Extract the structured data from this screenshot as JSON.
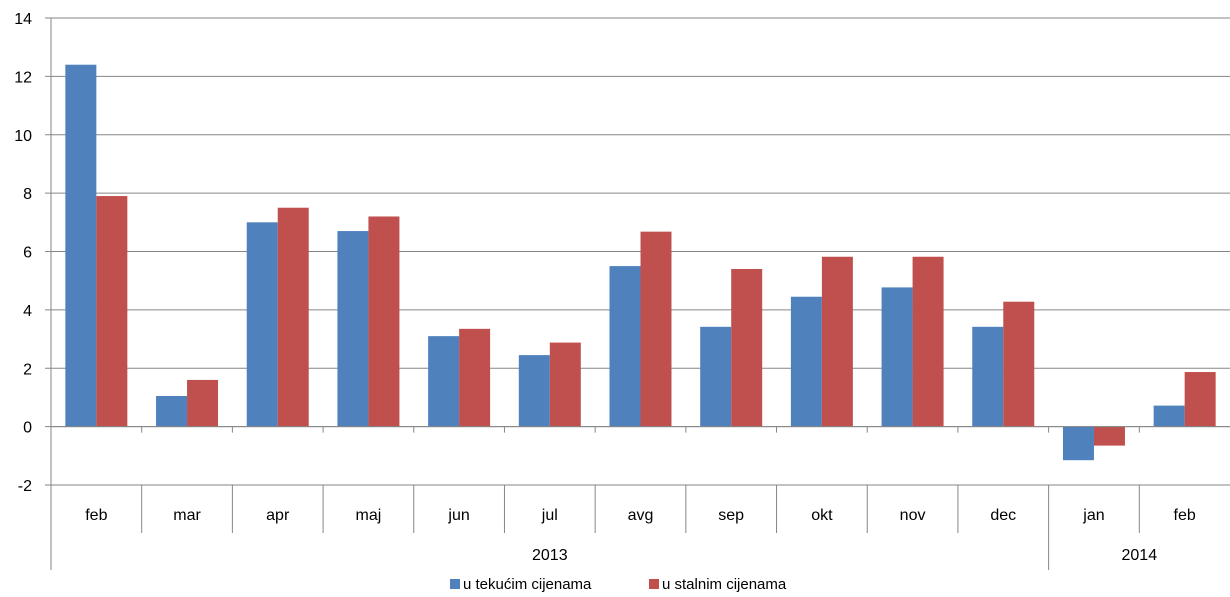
{
  "chart_data": {
    "type": "bar",
    "categories": [
      "feb",
      "mar",
      "apr",
      "maj",
      "jun",
      "jul",
      "avg",
      "sep",
      "okt",
      "nov",
      "dec",
      "jan",
      "feb"
    ],
    "groups": [
      {
        "label": "2013",
        "count": 11
      },
      {
        "label": "2014",
        "count": 2
      }
    ],
    "series": [
      {
        "name": "u tekućim cijenama",
        "color": "#4F81BD",
        "values": [
          12.4,
          1.05,
          7.0,
          6.7,
          3.1,
          2.45,
          5.5,
          3.42,
          4.45,
          4.77,
          3.42,
          -1.15,
          0.72
        ]
      },
      {
        "name": "u stalnim cijenama",
        "color": "#C0504D",
        "values": [
          7.9,
          1.6,
          7.5,
          7.2,
          3.35,
          2.88,
          6.68,
          5.4,
          5.82,
          5.82,
          4.28,
          -0.65,
          1.87
        ]
      }
    ],
    "ylim": [
      -2,
      14
    ],
    "yticks": [
      -2,
      0,
      2,
      4,
      6,
      8,
      10,
      12,
      14
    ],
    "grid": true,
    "legend": "bottom"
  }
}
